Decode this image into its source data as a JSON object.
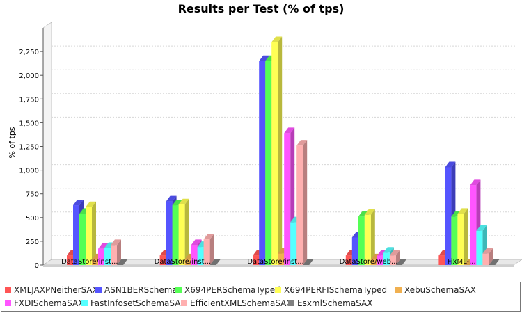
{
  "chart_data": {
    "type": "bar",
    "title": "Results per Test (% of tps)",
    "ylabel": "% of tps",
    "xlabel": "",
    "ylim": [
      0,
      2500
    ],
    "yticks": [
      0,
      250,
      500,
      750,
      1000,
      1250,
      1500,
      1750,
      2000,
      2250
    ],
    "ytick_labels": [
      "0",
      "250",
      "500",
      "750",
      "1,000",
      "1,250",
      "1,500",
      "1,750",
      "2,000",
      "2,250"
    ],
    "grid": true,
    "legend_position": "bottom",
    "categories": [
      "DataStore/inst...",
      "DataStore/inst...",
      "DataStore/inst...",
      "DataStore/web...",
      "FixML-..."
    ],
    "series": [
      {
        "name": "XMLJAXPNeitherSAX",
        "color": "#ff5555",
        "values": [
          100,
          100,
          100,
          100,
          100
        ]
      },
      {
        "name": "ASN1BERSchema",
        "color": "#5555ff",
        "values": [
          630,
          670,
          2150,
          290,
          1030
        ]
      },
      {
        "name": "X694PERSchemaTyped",
        "color": "#55ff55",
        "values": [
          540,
          630,
          2150,
          510,
          510
        ]
      },
      {
        "name": "X694PERFISchemaTyped",
        "color": "#ffff55",
        "values": [
          610,
          640,
          2350,
          530,
          540
        ]
      },
      {
        "name": "XebuSchemaSAX",
        "color": "#f0b050",
        "values": [
          60,
          60,
          120,
          60,
          0
        ]
      },
      {
        "name": "FXDISchemaSAX",
        "color": "#ff55ff",
        "values": [
          170,
          210,
          1390,
          100,
          840
        ]
      },
      {
        "name": "FastInfosetSchemaSAX",
        "color": "#55ffff",
        "values": [
          180,
          190,
          450,
          130,
          360
        ]
      },
      {
        "name": "EfficientXMLSchemaSAX",
        "color": "#ffb0b0",
        "values": [
          210,
          270,
          1260,
          100,
          120
        ]
      },
      {
        "name": "EsxmlSchemaSAX",
        "color": "#808080",
        "values": [
          0,
          0,
          0,
          0,
          0
        ]
      }
    ]
  }
}
